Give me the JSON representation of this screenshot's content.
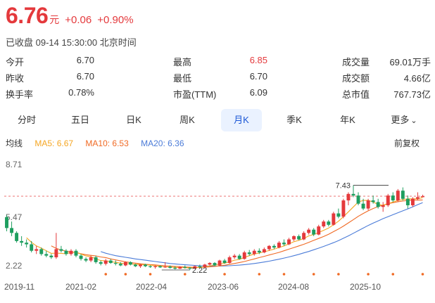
{
  "quote": {
    "price": "6.76",
    "unit": "元",
    "change": "+0.06",
    "change_pct": "+0.90%",
    "status": "已收盘 09-14 15:30:00 北京时间"
  },
  "stats": [
    [
      {
        "label": "今开",
        "value": "6.70"
      },
      {
        "label": "最高",
        "value": "6.85",
        "up": true
      },
      {
        "label": "成交量",
        "value": "69.01万手"
      }
    ],
    [
      {
        "label": "昨收",
        "value": "6.70"
      },
      {
        "label": "最低",
        "value": "6.70"
      },
      {
        "label": "成交额",
        "value": "4.66亿"
      }
    ],
    [
      {
        "label": "换手率",
        "value": "0.78%"
      },
      {
        "label": "市盈(TTM)",
        "value": "6.09"
      },
      {
        "label": "总市值",
        "value": "767.73亿"
      }
    ]
  ],
  "tabs": [
    "分时",
    "五日",
    "日K",
    "周K",
    "月K",
    "季K",
    "年K",
    "更多"
  ],
  "active_tab": "月K",
  "ma": {
    "label": "均线",
    "ma5": "MA5: 6.67",
    "ma10": "MA10: 6.53",
    "ma20": "MA20: 6.36",
    "fq": "前复权"
  },
  "colors": {
    "up": "#e4393c",
    "down": "#1e9e5f",
    "ma5": "#f5a623",
    "ma10": "#f06a24",
    "ma20": "#4a7bd8",
    "accent": "#1a56d6"
  },
  "chart_data": {
    "type": "candlestick",
    "ylim": [
      2.22,
      8.71
    ],
    "y_ticks": [
      "8.71",
      "5.47",
      "2.22"
    ],
    "x_ticks": [
      "2019-11",
      "2021-02",
      "2022-04",
      "2023-06",
      "2024-08",
      "2025-10"
    ],
    "max_label": "7.43",
    "min_label": "2.22",
    "last_close": 6.76,
    "candles": [
      [
        5.47,
        5.6,
        4.6,
        4.8
      ],
      [
        4.8,
        5.2,
        4.3,
        4.5
      ],
      [
        4.5,
        4.6,
        3.9,
        4.0
      ],
      [
        4.0,
        4.3,
        3.7,
        3.9
      ],
      [
        3.9,
        4.1,
        3.6,
        3.8
      ],
      [
        3.8,
        4.0,
        3.3,
        3.4
      ],
      [
        3.4,
        3.7,
        3.2,
        3.5
      ],
      [
        3.5,
        3.6,
        3.1,
        3.2
      ],
      [
        3.2,
        3.4,
        3.0,
        3.1
      ],
      [
        3.1,
        3.2,
        2.9,
        3.0
      ],
      [
        3.0,
        4.5,
        2.9,
        3.5
      ],
      [
        3.5,
        3.7,
        3.3,
        3.4
      ],
      [
        3.4,
        3.5,
        3.1,
        3.2
      ],
      [
        3.2,
        3.5,
        3.1,
        3.4
      ],
      [
        3.4,
        3.5,
        3.0,
        3.1
      ],
      [
        3.1,
        3.2,
        2.8,
        2.9
      ],
      [
        2.9,
        3.0,
        2.7,
        2.8
      ],
      [
        2.8,
        3.1,
        2.7,
        3.0
      ],
      [
        3.0,
        3.1,
        2.6,
        2.7
      ],
      [
        2.7,
        2.8,
        2.5,
        2.6
      ],
      [
        2.6,
        2.9,
        2.5,
        2.8
      ],
      [
        2.8,
        2.9,
        2.6,
        2.65
      ],
      [
        2.65,
        2.8,
        2.5,
        2.6
      ],
      [
        2.6,
        2.7,
        2.45,
        2.5
      ],
      [
        2.5,
        2.75,
        2.45,
        2.7
      ],
      [
        2.7,
        2.75,
        2.5,
        2.55
      ],
      [
        2.55,
        2.6,
        2.4,
        2.45
      ],
      [
        2.45,
        2.6,
        2.35,
        2.55
      ],
      [
        2.55,
        2.6,
        2.4,
        2.45
      ],
      [
        2.45,
        2.5,
        2.35,
        2.4
      ],
      [
        2.4,
        2.5,
        2.3,
        2.45
      ],
      [
        2.45,
        2.5,
        2.35,
        2.38
      ],
      [
        2.38,
        2.7,
        2.35,
        2.42
      ],
      [
        2.42,
        2.5,
        2.3,
        2.35
      ],
      [
        2.35,
        2.45,
        2.25,
        2.3
      ],
      [
        2.3,
        2.45,
        2.28,
        2.4
      ],
      [
        2.4,
        2.5,
        2.3,
        2.35
      ],
      [
        2.35,
        2.4,
        2.22,
        2.3
      ],
      [
        2.3,
        2.5,
        2.28,
        2.45
      ],
      [
        2.45,
        2.55,
        2.35,
        2.4
      ],
      [
        2.4,
        2.6,
        2.35,
        2.55
      ],
      [
        2.55,
        2.7,
        2.5,
        2.65
      ],
      [
        2.65,
        2.7,
        2.45,
        2.5
      ],
      [
        2.5,
        2.85,
        2.45,
        2.8
      ],
      [
        2.8,
        2.9,
        2.6,
        2.65
      ],
      [
        2.65,
        3.1,
        2.6,
        3.0
      ],
      [
        3.0,
        3.2,
        2.9,
        3.1
      ],
      [
        3.1,
        3.2,
        2.85,
        2.9
      ],
      [
        2.9,
        3.4,
        2.85,
        3.3
      ],
      [
        3.3,
        3.45,
        3.1,
        3.2
      ],
      [
        3.2,
        3.5,
        3.1,
        3.4
      ],
      [
        3.4,
        3.55,
        3.2,
        3.3
      ],
      [
        3.3,
        3.6,
        3.25,
        3.5
      ],
      [
        3.5,
        3.75,
        3.4,
        3.7
      ],
      [
        3.7,
        3.8,
        3.5,
        3.6
      ],
      [
        3.6,
        4.0,
        3.55,
        3.9
      ],
      [
        3.9,
        4.1,
        3.7,
        3.8
      ],
      [
        3.8,
        4.2,
        3.75,
        4.1
      ],
      [
        4.1,
        4.35,
        4.0,
        4.3
      ],
      [
        4.3,
        4.4,
        4.05,
        4.1
      ],
      [
        4.1,
        4.6,
        4.05,
        4.5
      ],
      [
        4.5,
        4.8,
        4.4,
        4.7
      ],
      [
        4.7,
        4.8,
        4.3,
        4.4
      ],
      [
        4.4,
        5.0,
        4.35,
        4.9
      ],
      [
        4.9,
        5.3,
        4.8,
        5.2
      ],
      [
        5.2,
        5.3,
        4.9,
        5.0
      ],
      [
        5.0,
        5.8,
        4.95,
        5.7
      ],
      [
        5.7,
        6.0,
        5.4,
        5.5
      ],
      [
        5.5,
        6.6,
        5.4,
        6.5
      ],
      [
        6.5,
        7.0,
        6.2,
        6.9
      ],
      [
        6.9,
        7.43,
        6.7,
        6.8
      ],
      [
        6.8,
        7.0,
        6.2,
        6.3
      ],
      [
        6.3,
        6.6,
        5.9,
        6.0
      ],
      [
        6.0,
        6.6,
        5.9,
        6.5
      ],
      [
        6.5,
        6.8,
        6.3,
        6.4
      ],
      [
        6.4,
        6.6,
        6.0,
        6.1
      ],
      [
        6.1,
        6.4,
        5.8,
        6.2
      ],
      [
        6.2,
        6.9,
        6.1,
        6.8
      ],
      [
        6.8,
        7.0,
        6.4,
        6.5
      ],
      [
        6.5,
        7.2,
        6.4,
        7.1
      ],
      [
        7.1,
        7.3,
        6.5,
        6.6
      ],
      [
        6.6,
        6.8,
        6.0,
        6.2
      ],
      [
        6.2,
        6.7,
        6.1,
        6.6
      ],
      [
        6.6,
        7.0,
        6.5,
        6.7
      ],
      [
        6.7,
        6.85,
        6.7,
        6.76
      ]
    ],
    "ma5": [
      null,
      null,
      null,
      null,
      4.2,
      3.92,
      3.7,
      3.56,
      3.4,
      3.24,
      3.26,
      3.24,
      3.22,
      3.3,
      3.32,
      3.2,
      3.08,
      3.04,
      2.9,
      2.8,
      2.78,
      2.73,
      2.69,
      2.64,
      2.61,
      2.6,
      2.56,
      2.56,
      2.54,
      2.52,
      2.48,
      2.45,
      2.42,
      2.4,
      2.38,
      2.37,
      2.36,
      2.34,
      2.36,
      2.38,
      2.41,
      2.48,
      2.52,
      2.59,
      2.63,
      2.72,
      2.82,
      2.87,
      2.99,
      3.1,
      3.2,
      3.26,
      3.34,
      3.42,
      3.5,
      3.6,
      3.7,
      3.82,
      3.96,
      4.04,
      4.16,
      4.32,
      4.4,
      4.52,
      4.66,
      4.8,
      5.0,
      5.22,
      5.5,
      5.8,
      6.1,
      6.4,
      6.5,
      6.5,
      6.4,
      6.25,
      6.2,
      6.3,
      6.4,
      6.5,
      6.55,
      6.6,
      6.6,
      6.6,
      6.67
    ],
    "ma10": [
      null,
      null,
      null,
      null,
      null,
      null,
      null,
      null,
      null,
      3.7,
      3.55,
      3.45,
      3.38,
      3.33,
      3.28,
      3.22,
      3.16,
      3.12,
      3.08,
      3.02,
      2.98,
      2.9,
      2.84,
      2.78,
      2.72,
      2.68,
      2.64,
      2.6,
      2.57,
      2.55,
      2.53,
      2.5,
      2.48,
      2.46,
      2.44,
      2.42,
      2.4,
      2.39,
      2.38,
      2.38,
      2.39,
      2.41,
      2.44,
      2.47,
      2.51,
      2.56,
      2.62,
      2.68,
      2.74,
      2.82,
      2.9,
      2.98,
      3.06,
      3.14,
      3.22,
      3.3,
      3.4,
      3.5,
      3.6,
      3.7,
      3.8,
      3.92,
      4.04,
      4.16,
      4.28,
      4.42,
      4.58,
      4.74,
      4.92,
      5.12,
      5.32,
      5.52,
      5.7,
      5.86,
      6.0,
      6.12,
      6.22,
      6.3,
      6.36,
      6.42,
      6.46,
      6.5,
      6.52,
      6.52,
      6.53
    ],
    "ma20": [
      null,
      null,
      null,
      null,
      null,
      null,
      null,
      null,
      null,
      null,
      null,
      null,
      null,
      null,
      null,
      null,
      null,
      null,
      null,
      3.35,
      3.25,
      3.17,
      3.1,
      3.05,
      3.0,
      2.95,
      2.9,
      2.86,
      2.82,
      2.78,
      2.74,
      2.7,
      2.66,
      2.62,
      2.59,
      2.56,
      2.54,
      2.52,
      2.5,
      2.48,
      2.47,
      2.46,
      2.46,
      2.46,
      2.47,
      2.48,
      2.5,
      2.52,
      2.55,
      2.58,
      2.62,
      2.66,
      2.71,
      2.76,
      2.82,
      2.88,
      2.95,
      3.02,
      3.1,
      3.18,
      3.27,
      3.36,
      3.46,
      3.56,
      3.67,
      3.78,
      3.9,
      4.03,
      4.17,
      4.32,
      4.48,
      4.64,
      4.8,
      4.96,
      5.1,
      5.24,
      5.38,
      5.5,
      5.62,
      5.74,
      5.86,
      5.98,
      6.1,
      6.24,
      6.36
    ]
  }
}
